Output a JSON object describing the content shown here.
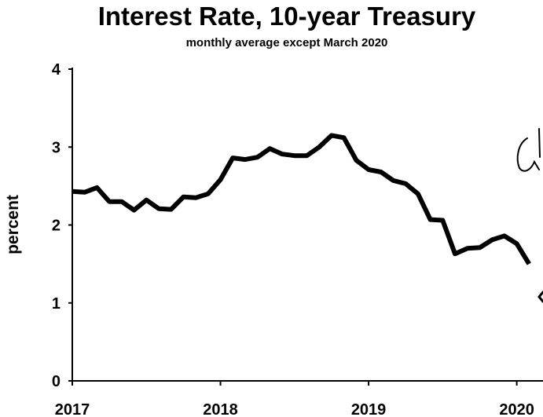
{
  "chart_data": {
    "type": "line",
    "title": "Interest Rate, 10-year Treasury",
    "subtitle": "monthly average except March 2020",
    "ylabel": "percent",
    "xlabel": "",
    "xlim": [
      2017,
      2020.14
    ],
    "ylim": [
      0,
      4
    ],
    "yticks": [
      "0",
      "1",
      "2",
      "3",
      "4"
    ],
    "xticks": [
      "2017",
      "2018",
      "2019",
      "2020"
    ],
    "grid": false,
    "legend": "none",
    "line_color": "#000000",
    "series": [
      {
        "x": [
          "2017-01",
          "2017-02",
          "2017-03",
          "2017-04",
          "2017-05",
          "2017-06",
          "2017-07",
          "2017-08",
          "2017-09",
          "2017-10",
          "2017-11",
          "2017-12",
          "2018-01",
          "2018-02",
          "2018-03",
          "2018-04",
          "2018-05",
          "2018-06",
          "2018-07",
          "2018-08",
          "2018-09",
          "2018-10",
          "2018-11",
          "2018-12",
          "2019-01",
          "2019-02",
          "2019-03",
          "2019-04",
          "2019-05",
          "2019-06",
          "2019-07",
          "2019-08",
          "2019-09",
          "2019-10",
          "2019-11",
          "2019-12",
          "2020-01",
          "2020-02"
        ],
        "values": [
          2.43,
          2.42,
          2.48,
          2.3,
          2.3,
          2.19,
          2.32,
          2.21,
          2.2,
          2.36,
          2.35,
          2.4,
          2.58,
          2.86,
          2.84,
          2.87,
          2.98,
          2.91,
          2.89,
          2.89,
          3.0,
          3.15,
          3.12,
          2.83,
          2.71,
          2.68,
          2.57,
          2.53,
          2.4,
          2.07,
          2.06,
          1.63,
          1.7,
          1.71,
          1.81,
          1.86,
          1.76,
          1.5
        ]
      }
    ],
    "annotations": [
      {
        "text": "(↓",
        "kind": "handwritten"
      },
      {
        "text": "←",
        "kind": "handwritten-arrow"
      }
    ]
  }
}
